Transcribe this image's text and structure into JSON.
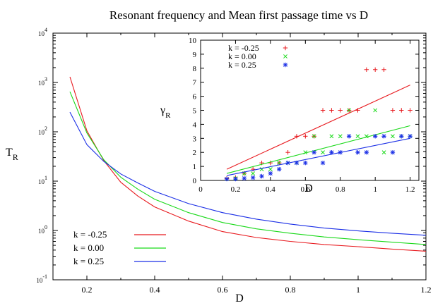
{
  "title": "Resonant frequency and Mean first passage time vs D",
  "colors": {
    "k_neg": "#e8191e",
    "k_zero": "#19d919",
    "k_pos": "#1a2ee6",
    "axis": "#000000"
  },
  "chart_data": [
    {
      "type": "line",
      "panel": "main",
      "xlabel": "D",
      "ylabel_main": "T",
      "ylabel_sub": "R",
      "xlim": [
        0.1,
        1.2
      ],
      "ylim": [
        0.1,
        10000
      ],
      "yscale": "log",
      "grid": false,
      "legend_position": "bottom-left",
      "x_ticks": [
        {
          "value": 0.2,
          "label": "0.2"
        },
        {
          "value": 0.4,
          "label": "0.4"
        },
        {
          "value": 0.6,
          "label": "0.6"
        },
        {
          "value": 0.8,
          "label": "0.8"
        },
        {
          "value": 1.0,
          "label": "1"
        },
        {
          "value": 1.2,
          "label": "1.2"
        }
      ],
      "y_ticks": [
        {
          "value": 0.1,
          "base": "10",
          "exp": "-1"
        },
        {
          "value": 1,
          "base": "10",
          "exp": "0"
        },
        {
          "value": 10,
          "base": "10",
          "exp": "1"
        },
        {
          "value": 100,
          "base": "10",
          "exp": "2"
        },
        {
          "value": 1000,
          "base": "10",
          "exp": "3"
        },
        {
          "value": 10000,
          "base": "10",
          "exp": "4"
        }
      ],
      "series": [
        {
          "name": "k = -0.25",
          "color_key": "k_neg",
          "x": [
            0.15,
            0.2,
            0.25,
            0.3,
            0.35,
            0.4,
            0.5,
            0.6,
            0.7,
            0.8,
            0.9,
            1.0,
            1.1,
            1.2
          ],
          "y": [
            1300,
            105,
            26,
            9.5,
            5.0,
            3.0,
            1.55,
            0.95,
            0.72,
            0.6,
            0.52,
            0.47,
            0.42,
            0.38
          ]
        },
        {
          "name": "k = 0.00",
          "color_key": "k_zero",
          "x": [
            0.15,
            0.2,
            0.25,
            0.3,
            0.35,
            0.4,
            0.5,
            0.6,
            0.7,
            0.8,
            0.9,
            1.0,
            1.1,
            1.2
          ],
          "y": [
            650,
            95,
            27,
            12,
            6.9,
            4.3,
            2.3,
            1.45,
            1.08,
            0.88,
            0.74,
            0.65,
            0.58,
            0.52
          ]
        },
        {
          "name": "k = 0.25",
          "color_key": "k_pos",
          "x": [
            0.15,
            0.2,
            0.25,
            0.3,
            0.35,
            0.4,
            0.5,
            0.6,
            0.7,
            0.8,
            0.9,
            1.0,
            1.1,
            1.2
          ],
          "y": [
            250,
            55,
            25,
            14,
            9.2,
            6.2,
            3.5,
            2.3,
            1.7,
            1.35,
            1.12,
            0.98,
            0.88,
            0.8
          ]
        }
      ]
    },
    {
      "type": "scatter",
      "panel": "inset",
      "xlabel": "D",
      "ylabel_main": "γ",
      "ylabel_sub": "R",
      "xlim": [
        0,
        1.25
      ],
      "ylim": [
        0,
        10
      ],
      "grid": false,
      "legend_position": "top-left",
      "x_ticks": [
        {
          "value": 0,
          "label": "0"
        },
        {
          "value": 0.2,
          "label": "0.2"
        },
        {
          "value": 0.4,
          "label": "0.4"
        },
        {
          "value": 0.6,
          "label": "0.6"
        },
        {
          "value": 0.8,
          "label": "0.8"
        },
        {
          "value": 1.0,
          "label": "1"
        },
        {
          "value": 1.2,
          "label": "1.2"
        }
      ],
      "y_ticks": [
        {
          "value": 0,
          "label": "0"
        },
        {
          "value": 1,
          "label": "1"
        },
        {
          "value": 2,
          "label": "2"
        },
        {
          "value": 3,
          "label": "3"
        },
        {
          "value": 4,
          "label": "4"
        },
        {
          "value": 5,
          "label": "5"
        },
        {
          "value": 6,
          "label": "6"
        },
        {
          "value": 7,
          "label": "7"
        },
        {
          "value": 8,
          "label": "8"
        },
        {
          "value": 9,
          "label": "9"
        },
        {
          "value": 10,
          "label": "10"
        }
      ],
      "series": [
        {
          "name": "k = -0.25",
          "color_key": "k_neg",
          "marker": "+",
          "x": [
            0.15,
            0.2,
            0.25,
            0.3,
            0.35,
            0.4,
            0.45,
            0.5,
            0.55,
            0.6,
            0.65,
            0.7,
            0.75,
            0.8,
            0.85,
            0.9,
            0.95,
            1.0,
            1.05,
            1.1,
            1.15,
            1.2
          ],
          "y": [
            0.15,
            0.2,
            0.5,
            0.8,
            1.25,
            1.25,
            1.25,
            2.0,
            3.15,
            3.15,
            3.15,
            5.0,
            5.0,
            5.0,
            5.0,
            5.0,
            7.9,
            7.9,
            7.9,
            5.0,
            5.0,
            5.0
          ],
          "fit": [
            [
              0.15,
              0.8
            ],
            [
              1.2,
              6.8
            ]
          ]
        },
        {
          "name": "k = 0.00",
          "color_key": "k_zero",
          "marker": "x",
          "x": [
            0.15,
            0.2,
            0.25,
            0.3,
            0.35,
            0.4,
            0.45,
            0.5,
            0.55,
            0.6,
            0.65,
            0.7,
            0.75,
            0.8,
            0.85,
            0.9,
            0.95,
            1.0,
            1.05,
            1.1,
            1.15,
            1.2
          ],
          "y": [
            0.1,
            0.15,
            0.5,
            0.5,
            0.8,
            0.8,
            1.25,
            1.25,
            1.25,
            2.0,
            3.15,
            2.0,
            3.15,
            3.15,
            5.0,
            3.15,
            3.15,
            5.0,
            2.0,
            3.15,
            3.15,
            3.15
          ],
          "fit": [
            [
              0.15,
              0.5
            ],
            [
              1.2,
              3.9
            ]
          ]
        },
        {
          "name": "k =  0.25",
          "color_key": "k_pos",
          "marker": "*",
          "x": [
            0.15,
            0.2,
            0.25,
            0.3,
            0.35,
            0.4,
            0.45,
            0.5,
            0.55,
            0.6,
            0.65,
            0.7,
            0.75,
            0.8,
            0.85,
            0.9,
            0.95,
            1.0,
            1.05,
            1.1,
            1.15,
            1.2
          ],
          "y": [
            0.1,
            0.1,
            0.15,
            0.2,
            0.3,
            0.5,
            0.8,
            1.25,
            1.25,
            1.25,
            2.0,
            1.25,
            2.0,
            2.0,
            3.15,
            2.0,
            2.0,
            3.15,
            3.15,
            2.0,
            3.15,
            3.15
          ],
          "fit": [
            [
              0.15,
              0.35
            ],
            [
              1.2,
              3.0
            ]
          ]
        }
      ]
    }
  ]
}
